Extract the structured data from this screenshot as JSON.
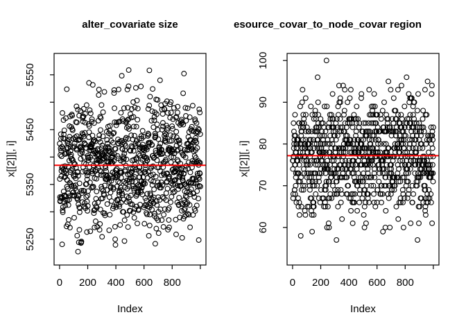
{
  "figure": {
    "background": "#ffffff",
    "foreground": "#000000",
    "point_color": "#000000",
    "reference_line_color": "#ff0000"
  },
  "chart_data": [
    {
      "type": "scatter",
      "panel": "left",
      "title": "alter_covariate size",
      "xlabel": "Index",
      "ylabel": "x[[2]][, i]",
      "legend": "none",
      "grid": false,
      "x_axis": {
        "range": [
          -39,
          1040
        ],
        "ticks": [
          {
            "v": 0,
            "label": "0"
          },
          {
            "v": 200,
            "label": "200"
          },
          {
            "v": 400,
            "label": "400"
          },
          {
            "v": 600,
            "label": "600"
          },
          {
            "v": 800,
            "label": "800"
          },
          {
            "v": 1000,
            "label": ""
          }
        ]
      },
      "y_axis": {
        "range": [
          5203,
          5589
        ],
        "ticks": [
          {
            "v": 5250,
            "label": "5250"
          },
          {
            "v": 5300,
            "label": ""
          },
          {
            "v": 5350,
            "label": "5350"
          },
          {
            "v": 5400,
            "label": ""
          },
          {
            "v": 5450,
            "label": "5450"
          },
          {
            "v": 5500,
            "label": ""
          },
          {
            "v": 5550,
            "label": "5550"
          }
        ]
      },
      "reference_line": {
        "value": 5385,
        "color": "#ff0000"
      },
      "points": {
        "n": 1000,
        "x_kind": "index",
        "x_min": 1,
        "x_max": 1000,
        "y_kind": "normal",
        "mean": 5384,
        "sd": 60,
        "y_min": 5217,
        "y_max": 5575,
        "integer": false,
        "seed": 1337,
        "marker": "open-circle",
        "color": "#000000"
      }
    },
    {
      "type": "scatter",
      "panel": "right",
      "title": "esource_covar_to_node_covar region",
      "xlabel": "Index",
      "ylabel": "x[[2]][, i]",
      "legend": "none",
      "grid": false,
      "x_axis": {
        "range": [
          -39,
          1040
        ],
        "ticks": [
          {
            "v": 0,
            "label": "0"
          },
          {
            "v": 200,
            "label": "200"
          },
          {
            "v": 400,
            "label": "400"
          },
          {
            "v": 600,
            "label": "600"
          },
          {
            "v": 800,
            "label": "800"
          },
          {
            "v": 1000,
            "label": ""
          }
        ]
      },
      "y_axis": {
        "range": [
          51,
          101.7
        ],
        "ticks": [
          {
            "v": 60,
            "label": "60"
          },
          {
            "v": 70,
            "label": "70"
          },
          {
            "v": 80,
            "label": "80"
          },
          {
            "v": 90,
            "label": "90"
          },
          {
            "v": 100,
            "label": "100"
          }
        ]
      },
      "reference_line": {
        "value": 77.2,
        "color": "#ff0000"
      },
      "points": {
        "n": 1000,
        "x_kind": "index",
        "x_min": 1,
        "x_max": 1000,
        "y_kind": "normal",
        "mean": 77.3,
        "sd": 7.5,
        "y_min": 53,
        "y_max": 100,
        "integer": true,
        "seed": 4242,
        "marker": "open-circle",
        "color": "#000000"
      }
    }
  ]
}
